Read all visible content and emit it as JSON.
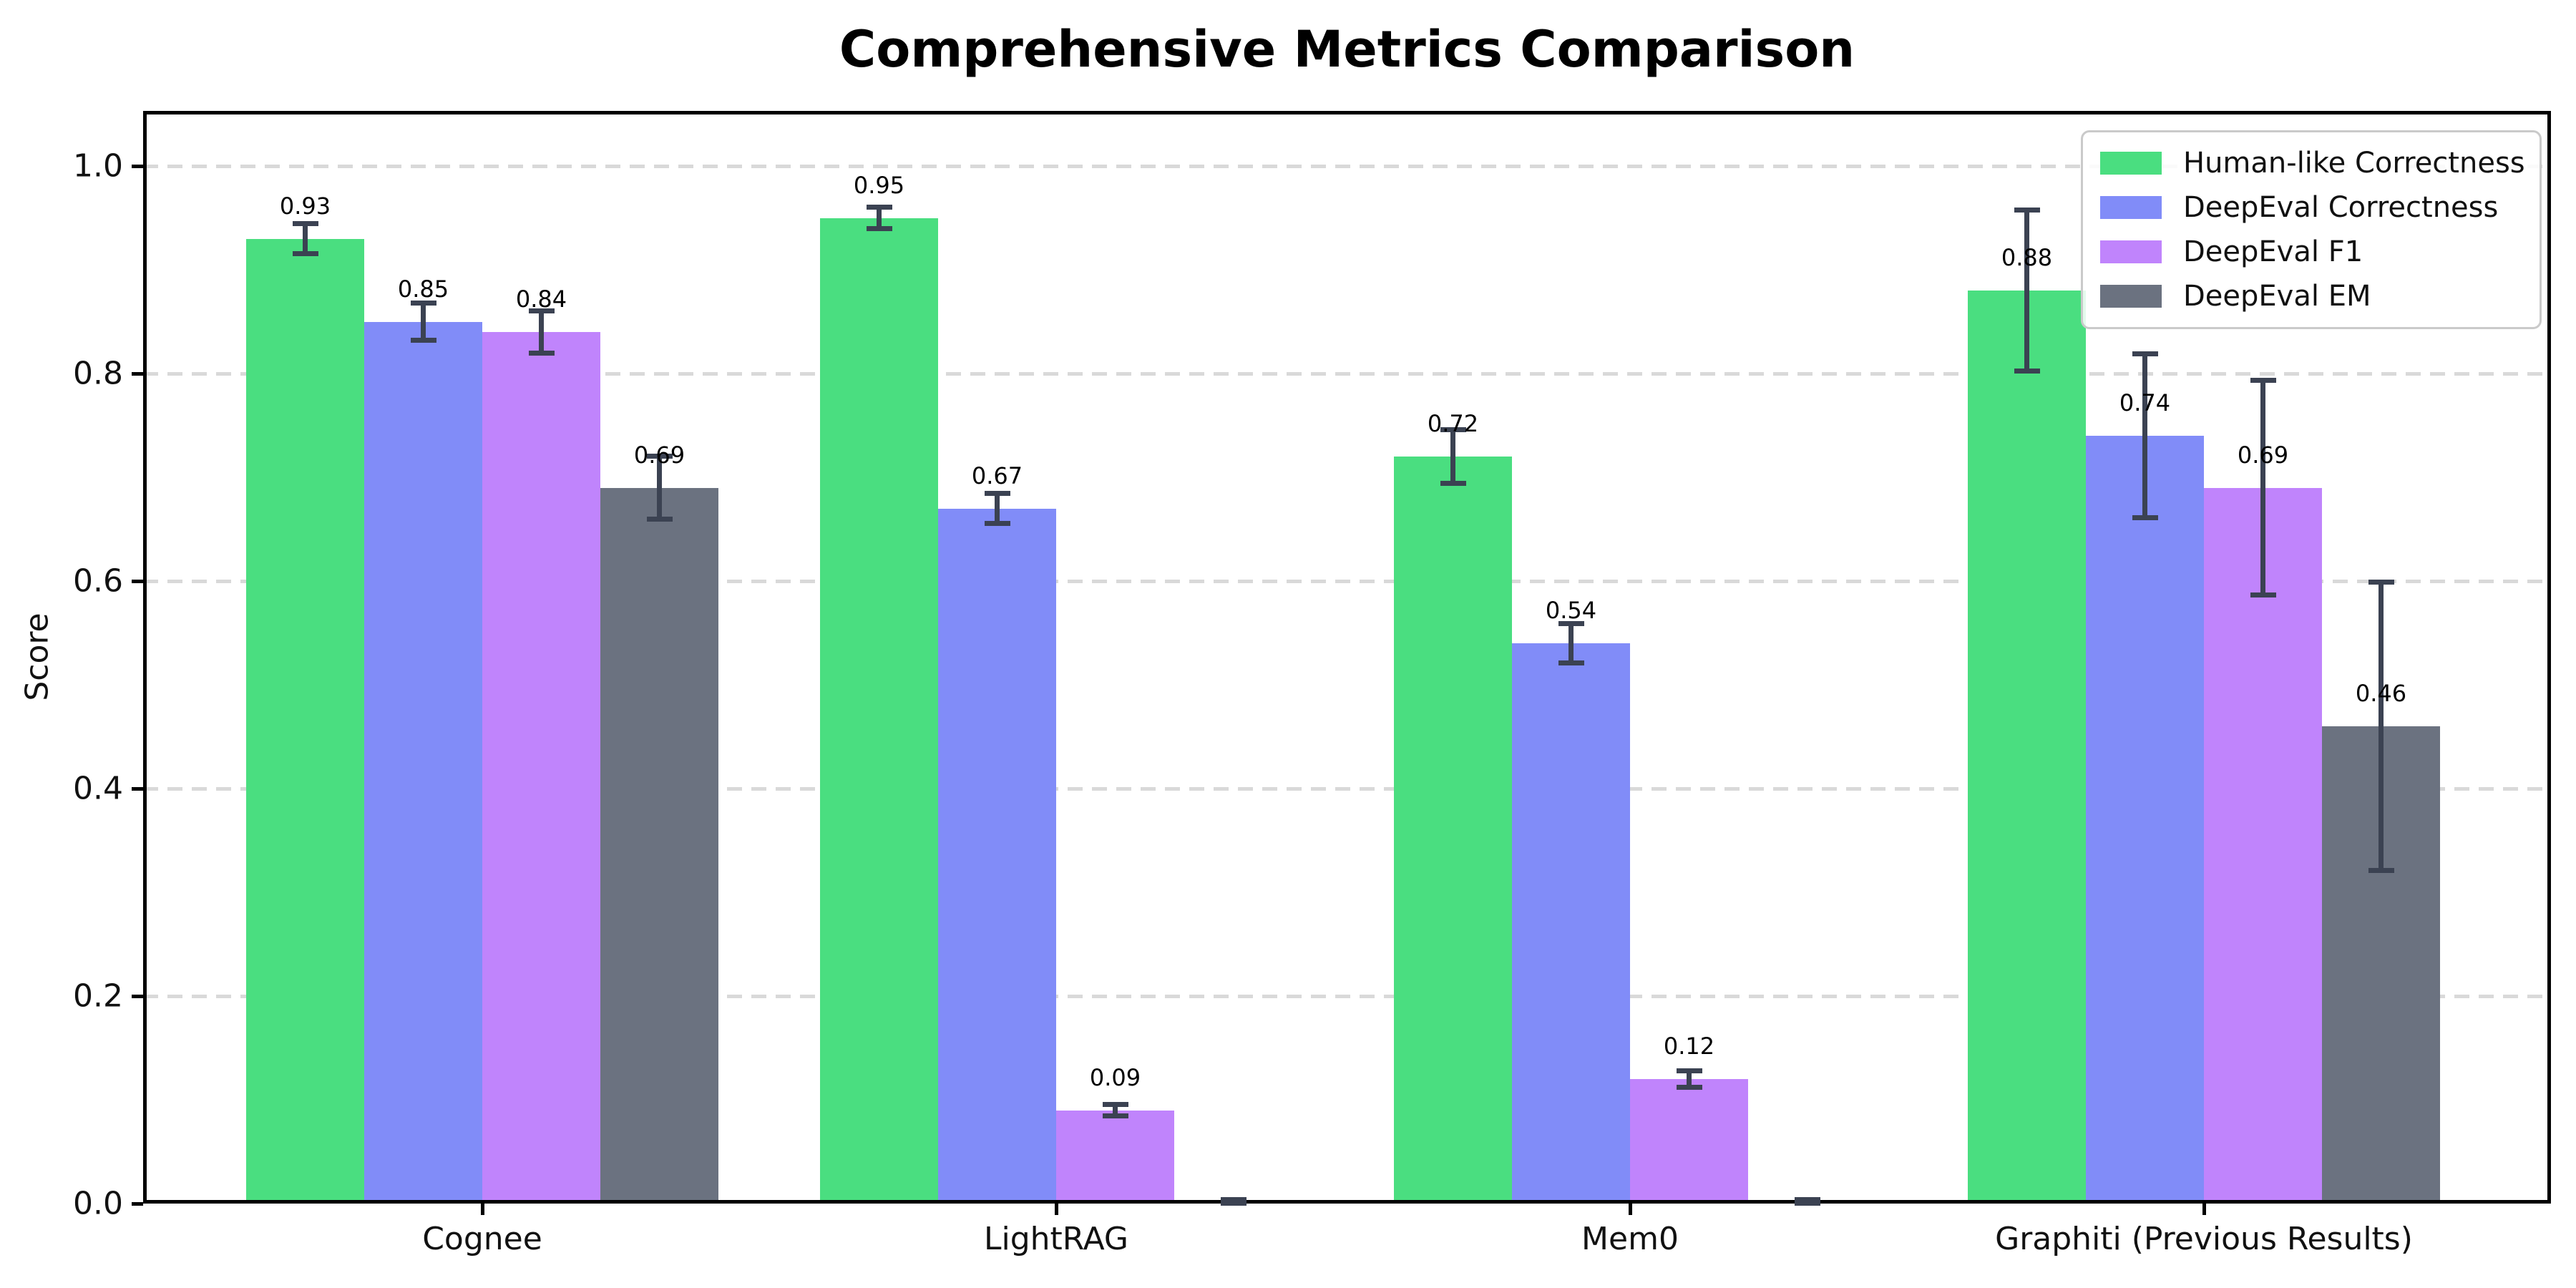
{
  "chart_data": {
    "type": "bar",
    "title": "Comprehensive Metrics Comparison",
    "xlabel": "",
    "ylabel": "Score",
    "categories": [
      "Cognee",
      "LightRAG",
      "Mem0",
      "Graphiti (Previous Results)"
    ],
    "yticks": [
      "0.0",
      "0.2",
      "0.4",
      "0.6",
      "0.8",
      "1.0"
    ],
    "ytick_values": [
      0.0,
      0.2,
      0.4,
      0.6,
      0.8,
      1.0
    ],
    "ylim": [
      0,
      1.053
    ],
    "grid": "horizontal-dashed",
    "legend_position": "upper right",
    "error_bar_color": "#3b4252",
    "series": [
      {
        "name": "Human-like Correctness",
        "color": "#4ade80",
        "values": [
          0.93,
          0.95,
          0.72,
          0.88
        ],
        "errors": [
          0.015,
          0.011,
          0.026,
          0.078
        ],
        "labels": [
          "0.93",
          "0.95",
          "0.72",
          "0.88"
        ]
      },
      {
        "name": "DeepEval Correctness",
        "color": "#818cf8",
        "values": [
          0.85,
          0.67,
          0.54,
          0.74
        ],
        "errors": [
          0.018,
          0.015,
          0.019,
          0.079
        ],
        "labels": [
          "0.85",
          "0.67",
          "0.54",
          "0.74"
        ]
      },
      {
        "name": "DeepEval F1",
        "color": "#c084fc",
        "values": [
          0.84,
          0.09,
          0.12,
          0.69
        ],
        "errors": [
          0.021,
          0.006,
          0.008,
          0.104
        ],
        "labels": [
          "0.84",
          "0.09",
          "0.12",
          "0.69"
        ]
      },
      {
        "name": "DeepEval EM",
        "color": "#6b7280",
        "values": [
          0.69,
          0.0,
          0.0,
          0.46
        ],
        "errors": [
          0.031,
          0.004,
          0.004,
          0.139
        ],
        "labels": [
          "0.69",
          "",
          "",
          "0.46"
        ]
      }
    ]
  }
}
